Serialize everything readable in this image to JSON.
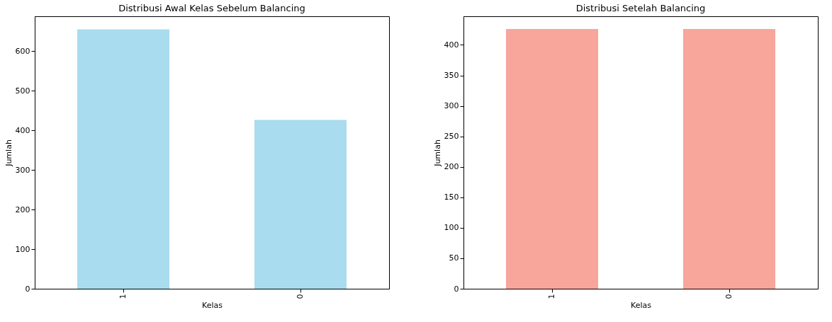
{
  "chart_data": [
    {
      "type": "bar",
      "title": "Distribusi Awal Kelas Sebelum Balancing",
      "xlabel": "Kelas",
      "ylabel": "Jumlah",
      "categories": [
        "1",
        "0"
      ],
      "values": [
        655,
        426
      ],
      "color": "#a8dcee",
      "ylim": [
        0,
        688
      ],
      "yticks": [
        0,
        100,
        200,
        300,
        400,
        500,
        600
      ],
      "grid": false,
      "legend": false
    },
    {
      "type": "bar",
      "title": "Distribusi Setelah Balancing",
      "xlabel": "Kelas",
      "ylabel": "Jumlah",
      "categories": [
        "1",
        "0"
      ],
      "values": [
        426,
        426
      ],
      "color": "#f8a59b",
      "ylim": [
        0,
        447
      ],
      "yticks": [
        0,
        50,
        100,
        150,
        200,
        250,
        300,
        350,
        400
      ],
      "grid": false,
      "legend": false
    }
  ]
}
